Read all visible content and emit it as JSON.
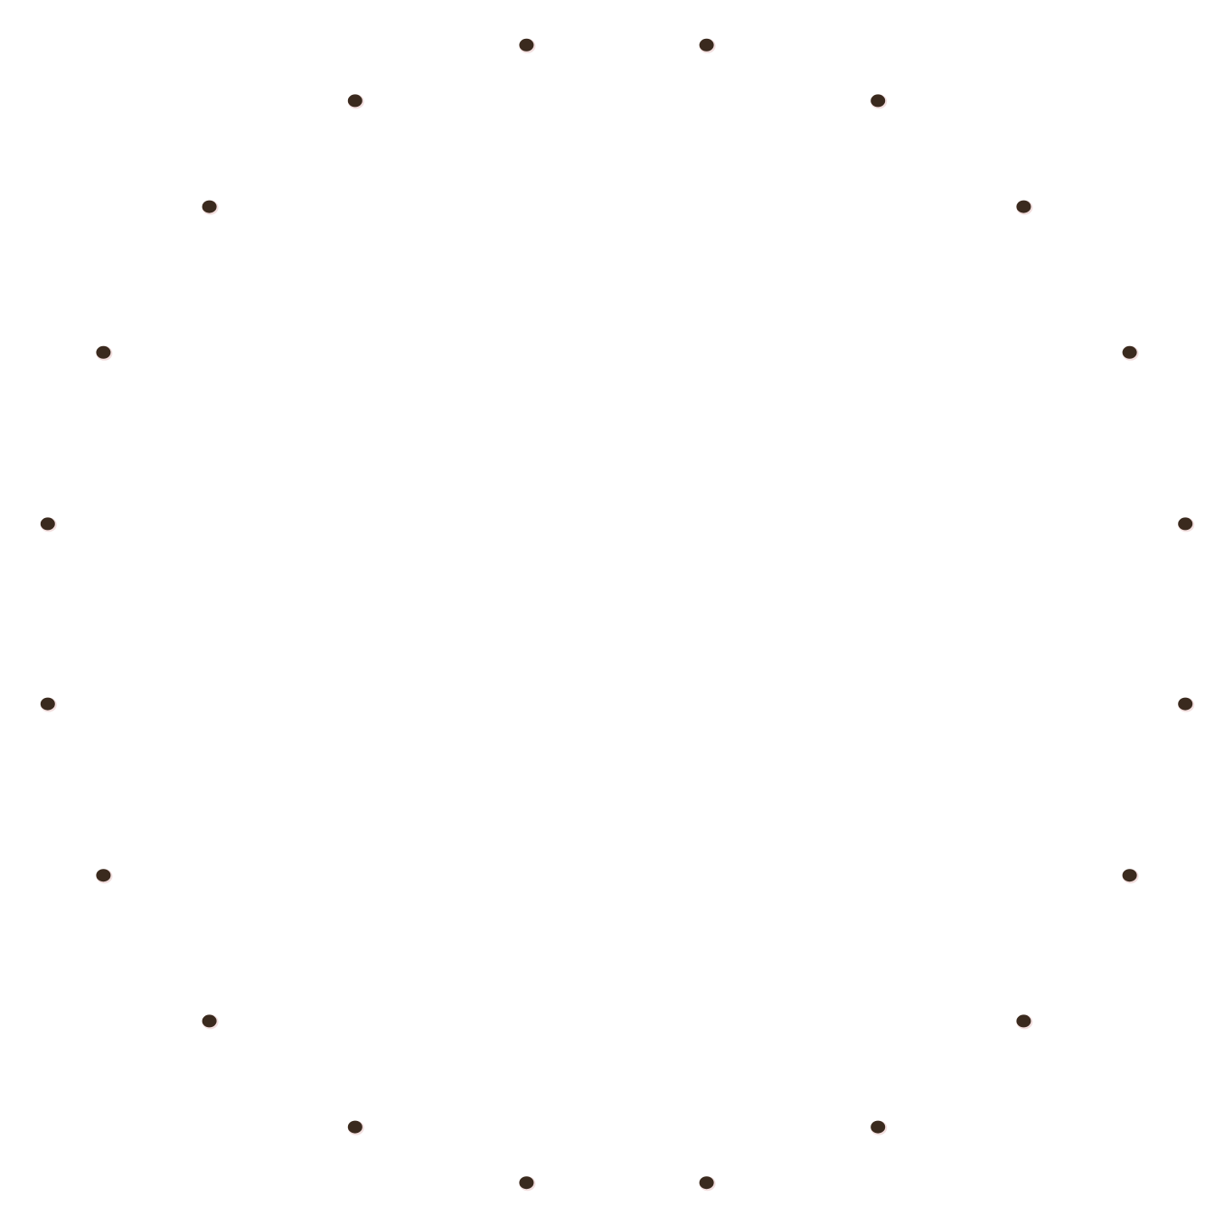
{
  "dot_ring": {
    "dot_count": 20,
    "dot_color": "#3a2a1e",
    "dot_halo_color": "#f2dede",
    "background_color": "#ffffff"
  }
}
